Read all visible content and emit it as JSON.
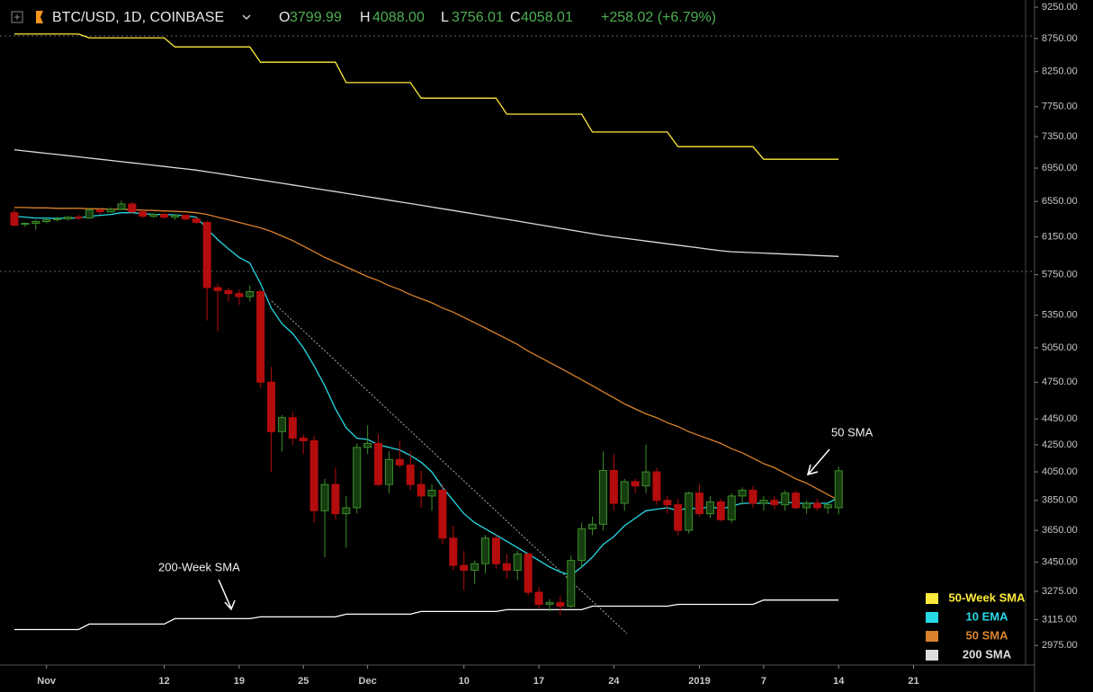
{
  "chart_data": {
    "type": "candlestick",
    "title": "BTC/USD, 1D, COINBASE",
    "quote": [
      {
        "label": "O",
        "value": "3799.99"
      },
      {
        "label": "H",
        "value": "4088.00"
      },
      {
        "label": "L",
        "value": "3756.01"
      },
      {
        "label": "C",
        "value": "4058.01"
      }
    ],
    "change": "+258.02 (+6.79%)",
    "log_scale": true,
    "up_color": "#2e7d1f",
    "down_color": "#b50d0d",
    "open": [
      6420,
      6290,
      6300,
      6320,
      6340,
      6350,
      6370,
      6360,
      6450,
      6430,
      6460,
      6520,
      6430,
      6380,
      6400,
      6370,
      6390,
      6350,
      6310,
      5620,
      5590,
      5560,
      5530,
      5580,
      4750,
      4350,
      4460,
      4300,
      4280,
      3780,
      3960,
      3760,
      3800,
      4230,
      4260,
      3960,
      4140,
      4100,
      3960,
      3880,
      3920,
      3600,
      3430,
      3400,
      3440,
      3600,
      3440,
      3400,
      3500,
      3270,
      3200,
      3210,
      3190,
      3460,
      3660,
      3690,
      4060,
      3830,
      3980,
      3950,
      4050,
      3850,
      3820,
      3650,
      3900,
      3760,
      3840,
      3720,
      3880,
      3920,
      3830,
      3850,
      3820,
      3900,
      3800,
      3830,
      3800,
      3799.99
    ],
    "high": [
      6460,
      6310,
      6340,
      6360,
      6370,
      6380,
      6400,
      6470,
      6470,
      6480,
      6560,
      6540,
      6450,
      6420,
      6420,
      6400,
      6400,
      6380,
      6330,
      5660,
      5620,
      5600,
      5640,
      5600,
      4880,
      4480,
      4500,
      4330,
      4320,
      4000,
      4080,
      3880,
      4260,
      4400,
      4330,
      4200,
      4280,
      4200,
      4060,
      3960,
      3960,
      3680,
      3520,
      3460,
      3620,
      3620,
      3500,
      3520,
      3510,
      3300,
      3230,
      3250,
      3490,
      3700,
      3740,
      4200,
      4180,
      4000,
      4000,
      4250,
      4080,
      3880,
      3860,
      3910,
      3960,
      3880,
      3860,
      3900,
      3940,
      3950,
      3880,
      3880,
      3920,
      3920,
      3850,
      3860,
      3840,
      4088
    ],
    "low": [
      6260,
      6260,
      6230,
      6300,
      6320,
      6330,
      6340,
      6350,
      6400,
      6420,
      6450,
      6410,
      6360,
      6360,
      6350,
      6340,
      6330,
      6290,
      5300,
      5200,
      5480,
      5450,
      5480,
      4700,
      4050,
      4200,
      4250,
      4180,
      3700,
      3480,
      3720,
      3540,
      3760,
      4180,
      3950,
      3900,
      4080,
      3920,
      3800,
      3780,
      3560,
      3400,
      3280,
      3320,
      3380,
      3410,
      3350,
      3340,
      3250,
      3180,
      3160,
      3140,
      3180,
      3420,
      3620,
      3650,
      3780,
      3780,
      3900,
      3900,
      3820,
      3760,
      3620,
      3630,
      3740,
      3730,
      3710,
      3700,
      3820,
      3800,
      3780,
      3790,
      3780,
      3790,
      3760,
      3780,
      3760,
      3756.01
    ],
    "close": [
      6280,
      6300,
      6320,
      6340,
      6350,
      6370,
      6360,
      6450,
      6430,
      6460,
      6520,
      6430,
      6380,
      6400,
      6370,
      6390,
      6350,
      6310,
      5620,
      5590,
      5560,
      5530,
      5580,
      4750,
      4350,
      4460,
      4300,
      4280,
      3780,
      3960,
      3760,
      3800,
      4230,
      4260,
      3960,
      4140,
      4100,
      3960,
      3880,
      3920,
      3600,
      3430,
      3400,
      3440,
      3600,
      3440,
      3400,
      3500,
      3270,
      3200,
      3210,
      3190,
      3460,
      3660,
      3690,
      4060,
      3830,
      3980,
      3950,
      4050,
      3850,
      3820,
      3650,
      3900,
      3760,
      3840,
      3720,
      3880,
      3920,
      3830,
      3850,
      3820,
      3900,
      3800,
      3830,
      3800,
      3820,
      4058.01
    ],
    "series": [
      {
        "name": "50-Week SMA",
        "color": "#ffeb3b",
        "values": [
          8820,
          8820,
          8820,
          8820,
          8820,
          8820,
          8820,
          8760,
          8760,
          8760,
          8760,
          8760,
          8760,
          8760,
          8760,
          8620,
          8620,
          8620,
          8620,
          8620,
          8620,
          8620,
          8620,
          8390,
          8390,
          8390,
          8390,
          8390,
          8390,
          8390,
          8390,
          8090,
          8090,
          8090,
          8090,
          8090,
          8090,
          8090,
          7870,
          7870,
          7870,
          7870,
          7870,
          7870,
          7870,
          7870,
          7650,
          7650,
          7650,
          7650,
          7650,
          7650,
          7650,
          7650,
          7410,
          7410,
          7410,
          7410,
          7410,
          7410,
          7410,
          7410,
          7220,
          7220,
          7220,
          7220,
          7220,
          7220,
          7220,
          7220,
          7060,
          7060,
          7060,
          7060,
          7060,
          7060,
          7060,
          7060
        ]
      },
      {
        "name": "10 EMA",
        "color": "#26d9e6",
        "values": [
          6380,
          6370,
          6360,
          6360,
          6355,
          6360,
          6360,
          6380,
          6390,
          6400,
          6420,
          6420,
          6410,
          6400,
          6400,
          6395,
          6385,
          6370,
          6240,
          6120,
          6020,
          5930,
          5870,
          5660,
          5420,
          5270,
          5180,
          5050,
          4890,
          4720,
          4530,
          4380,
          4300,
          4290,
          4250,
          4230,
          4210,
          4170,
          4120,
          4050,
          3940,
          3850,
          3760,
          3700,
          3660,
          3620,
          3580,
          3540,
          3500,
          3460,
          3420,
          3390,
          3370,
          3420,
          3480,
          3560,
          3610,
          3680,
          3730,
          3780,
          3790,
          3800,
          3780,
          3800,
          3790,
          3810,
          3790,
          3810,
          3830,
          3830,
          3830,
          3830,
          3840,
          3830,
          3830,
          3830,
          3830,
          3870
        ]
      },
      {
        "name": "50 SMA",
        "color": "#d9822b",
        "values": [
          6480,
          6480,
          6475,
          6475,
          6470,
          6470,
          6470,
          6465,
          6465,
          6460,
          6460,
          6455,
          6450,
          6445,
          6440,
          6435,
          6430,
          6420,
          6400,
          6370,
          6340,
          6310,
          6280,
          6250,
          6210,
          6160,
          6110,
          6050,
          5990,
          5930,
          5880,
          5830,
          5780,
          5730,
          5690,
          5640,
          5600,
          5550,
          5510,
          5470,
          5420,
          5380,
          5330,
          5280,
          5230,
          5180,
          5130,
          5080,
          5020,
          4970,
          4920,
          4870,
          4820,
          4770,
          4720,
          4670,
          4620,
          4570,
          4530,
          4490,
          4460,
          4420,
          4390,
          4350,
          4320,
          4290,
          4260,
          4220,
          4190,
          4150,
          4110,
          4080,
          4040,
          4000,
          3970,
          3930,
          3890,
          3850
        ]
      },
      {
        "name": "200 SMA",
        "color": "#dcdcdc",
        "values": [
          7180,
          7165,
          7150,
          7135,
          7120,
          7105,
          7090,
          7075,
          7060,
          7045,
          7030,
          7015,
          7000,
          6985,
          6970,
          6955,
          6940,
          6925,
          6905,
          6885,
          6865,
          6845,
          6825,
          6805,
          6785,
          6765,
          6745,
          6725,
          6705,
          6685,
          6665,
          6645,
          6625,
          6605,
          6585,
          6565,
          6545,
          6525,
          6505,
          6485,
          6465,
          6445,
          6425,
          6405,
          6385,
          6365,
          6345,
          6325,
          6305,
          6285,
          6265,
          6245,
          6225,
          6205,
          6185,
          6165,
          6150,
          6135,
          6120,
          6105,
          6090,
          6075,
          6060,
          6045,
          6030,
          6015,
          6000,
          5990,
          5985,
          5980,
          5975,
          5970,
          5965,
          5960,
          5955,
          5950,
          5945,
          5940
        ]
      },
      {
        "name": "200-Week SMA",
        "color": "#ffffff",
        "legend": false,
        "values": [
          3060,
          3060,
          3060,
          3060,
          3060,
          3060,
          3060,
          3090,
          3090,
          3090,
          3090,
          3090,
          3090,
          3090,
          3090,
          3120,
          3120,
          3120,
          3120,
          3120,
          3120,
          3120,
          3120,
          3130,
          3130,
          3130,
          3130,
          3130,
          3130,
          3130,
          3130,
          3145,
          3145,
          3145,
          3145,
          3145,
          3145,
          3145,
          3160,
          3160,
          3160,
          3160,
          3160,
          3160,
          3160,
          3160,
          3170,
          3170,
          3170,
          3170,
          3170,
          3170,
          3170,
          3170,
          3190,
          3190,
          3190,
          3190,
          3190,
          3190,
          3190,
          3190,
          3200,
          3200,
          3200,
          3200,
          3200,
          3200,
          3200,
          3200,
          3225,
          3225,
          3225,
          3225,
          3225,
          3225,
          3225,
          3225
        ]
      }
    ],
    "xlim": [
      -1.34,
      95.3
    ],
    "xticks": [
      {
        "value": 3,
        "label": "Nov"
      },
      {
        "value": 14,
        "label": "12"
      },
      {
        "value": 21,
        "label": "19"
      },
      {
        "value": 27,
        "label": "25"
      },
      {
        "value": 33,
        "label": "Dec"
      },
      {
        "value": 42,
        "label": "10"
      },
      {
        "value": 49,
        "label": "17"
      },
      {
        "value": 56,
        "label": "24"
      },
      {
        "value": 64,
        "label": "2019"
      },
      {
        "value": 70,
        "label": "7"
      },
      {
        "value": 77,
        "label": "14"
      },
      {
        "value": 84,
        "label": "21"
      }
    ],
    "ylim": [
      2873,
      9370
    ],
    "yticks": [
      {
        "value": 9250,
        "label": "9250.00"
      },
      {
        "value": 8750,
        "label": "8750.00"
      },
      {
        "value": 8250,
        "label": "8250.00"
      },
      {
        "value": 7750,
        "label": "7750.00"
      },
      {
        "value": 7350,
        "label": "7350.00"
      },
      {
        "value": 6950,
        "label": "6950.00"
      },
      {
        "value": 6550,
        "label": "6550.00"
      },
      {
        "value": 6150,
        "label": "6150.00"
      },
      {
        "value": 5750,
        "label": "5750.00"
      },
      {
        "value": 5350,
        "label": "5350.00"
      },
      {
        "value": 5050,
        "label": "5050.00"
      },
      {
        "value": 4750,
        "label": "4750.00"
      },
      {
        "value": 4450,
        "label": "4450.00"
      },
      {
        "value": 4250,
        "label": "4250.00"
      },
      {
        "value": 4050,
        "label": "4050.00"
      },
      {
        "value": 3850,
        "label": "3850.00"
      },
      {
        "value": 3650,
        "label": "3650.00"
      },
      {
        "value": 3450,
        "label": "3450.00"
      },
      {
        "value": 3275,
        "label": "3275.00"
      },
      {
        "value": 3115,
        "label": "3115.00"
      },
      {
        "value": 2975,
        "label": "2975.00"
      }
    ],
    "legend": "bottom-right"
  }
}
